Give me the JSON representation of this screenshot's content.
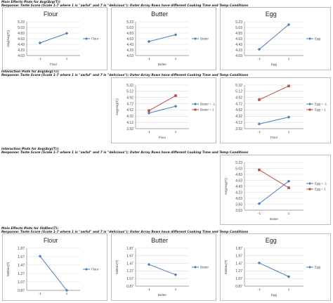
{
  "headers": [
    {
      "title": "Main Effects Plots for Avg(Avg(T))",
      "subtitle": "Response: Taste Score (Scale 1-7 where 1 is \"awful\" and 7 is \"delicious\"); Outer Array Rows have different Cooking Time and Temp Conditions"
    },
    {
      "title": "Interaction Plots for Avg(Avg(T)):",
      "subtitle": "Response: Taste Score (Scale 1-7 where 1 is \"awful\" and 7 is \"delicious\"); Outer Array Rows have different Cooking Time and Temp Conditions"
    },
    {
      "title": "Interaction Plots for Avg(Avg(T)):",
      "subtitle": "Response: Taste Score (Scale 1-7 where 1 is \"awful\" and 7 is \"delicious\"); Outer Array Rows have different Cooking Time and Temp Conditions"
    },
    {
      "title": "Main Effects Plots for StdDev(T):",
      "subtitle": "Response: Taste Score (Scale 1-7 where 1 is \"awful\" and 7 is \"delicious\"); Outer Array Rows have different Cooking Time and Temp Conditions"
    }
  ],
  "colors": {
    "blue": "#4a7ebb",
    "red": "#be4b48",
    "grid": "#d9d9d9",
    "axis": "#888888"
  },
  "chart_data": [
    {
      "type": "line",
      "title": "Flour",
      "xlabel": "Flour",
      "ylabel": "Avg(Avg(T))",
      "categories": [
        "-1",
        "1"
      ],
      "yticks": [
        "4.03",
        "4.23",
        "4.43",
        "4.63",
        "4.83",
        "5.03",
        "5.23"
      ],
      "ylim": [
        4.03,
        5.23
      ],
      "series": [
        {
          "name": "Flour",
          "color": "blue",
          "marker": "diamond",
          "values": [
            4.48,
            4.82
          ]
        }
      ]
    },
    {
      "type": "line",
      "title": "Butter",
      "xlabel": "Butter",
      "ylabel": "",
      "categories": [
        "-1",
        "1"
      ],
      "yticks": [
        "4.03",
        "4.23",
        "4.43",
        "4.63",
        "4.83",
        "5.03",
        "5.23"
      ],
      "ylim": [
        4.03,
        5.23
      ],
      "series": [
        {
          "name": "Butter",
          "color": "blue",
          "marker": "diamond",
          "values": [
            4.53,
            4.77
          ]
        }
      ]
    },
    {
      "type": "line",
      "title": "Egg",
      "xlabel": "Egg",
      "ylabel": "",
      "categories": [
        "-1",
        "1"
      ],
      "yticks": [
        "4.03",
        "4.23",
        "4.43",
        "4.63",
        "4.83",
        "5.03",
        "5.23"
      ],
      "ylim": [
        4.03,
        5.23
      ],
      "series": [
        {
          "name": "Egg",
          "color": "blue",
          "marker": "diamond",
          "values": [
            4.25,
            5.13
          ]
        }
      ]
    },
    {
      "type": "line",
      "title": "",
      "xlabel": "Flour",
      "ylabel": "Avg(Avg(T))",
      "categories": [
        "-1",
        "1"
      ],
      "yticks": [
        "3.92",
        "4.12",
        "4.32",
        "4.52",
        "4.72",
        "4.92",
        "5.12",
        "5.32"
      ],
      "ylim": [
        3.92,
        5.32
      ],
      "series": [
        {
          "name": "Butter = -1",
          "color": "blue",
          "marker": "diamond",
          "values": [
            4.42,
            4.64
          ]
        },
        {
          "name": "Butter = 1",
          "color": "red",
          "marker": "square",
          "values": [
            4.5,
            4.98
          ]
        }
      ]
    },
    {
      "type": "line",
      "title": "",
      "xlabel": "Flour",
      "ylabel": "",
      "categories": [
        "-1",
        "1"
      ],
      "yticks": [
        "3.92",
        "4.12",
        "4.32",
        "4.52",
        "4.72",
        "4.92",
        "5.12",
        "5.32"
      ],
      "ylim": [
        3.92,
        5.32
      ],
      "series": [
        {
          "name": "Egg = -1",
          "color": "blue",
          "marker": "diamond",
          "values": [
            4.07,
            4.29
          ]
        },
        {
          "name": "Egg = 1",
          "color": "red",
          "marker": "square",
          "values": [
            4.85,
            5.29
          ]
        }
      ]
    },
    {
      "type": "line",
      "title": "",
      "xlabel": "Butter",
      "ylabel": "Avg(Avg(T))",
      "categories": [
        "-1",
        "1"
      ],
      "yticks": [
        "3.63",
        "3.83",
        "4.03",
        "4.23",
        "4.43",
        "4.63",
        "4.83",
        "5.03",
        "5.23"
      ],
      "ylim": [
        3.63,
        5.23
      ],
      "series": [
        {
          "name": "Egg = -1",
          "color": "blue",
          "marker": "diamond",
          "values": [
            3.85,
            4.6
          ]
        },
        {
          "name": "Egg = 1",
          "color": "red",
          "marker": "square",
          "values": [
            4.98,
            4.38
          ]
        }
      ]
    },
    {
      "type": "line",
      "title": "Flour",
      "xlabel": "",
      "ylabel": "StdDev(T)",
      "categories": [
        "-1",
        "1"
      ],
      "yticks": [
        "0.87",
        "1.07",
        "1.27",
        "1.47",
        "1.67",
        "1.87"
      ],
      "ylim": [
        0.87,
        1.87
      ],
      "series": [
        {
          "name": "Flour",
          "color": "blue",
          "marker": "diamond",
          "values": [
            1.68,
            0.87
          ]
        }
      ]
    },
    {
      "type": "line",
      "title": "Butter",
      "xlabel": "Butter",
      "ylabel": "StdDev(T)",
      "categories": [
        "-1",
        "1"
      ],
      "yticks": [
        "0.87",
        "1.07",
        "1.27",
        "1.47",
        "1.67",
        "1.87"
      ],
      "ylim": [
        0.87,
        1.87
      ],
      "series": [
        {
          "name": "Butter",
          "color": "blue",
          "marker": "diamond",
          "values": [
            1.44,
            1.17
          ]
        }
      ]
    },
    {
      "type": "line",
      "title": "Egg",
      "xlabel": "Egg",
      "ylabel": "StdDev(T)",
      "categories": [
        "-1",
        "1"
      ],
      "yticks": [
        "0.87",
        "1.07",
        "1.27",
        "1.47",
        "1.67",
        "1.87"
      ],
      "ylim": [
        0.87,
        1.87
      ],
      "series": [
        {
          "name": "Egg",
          "color": "blue",
          "marker": "diamond",
          "values": [
            1.48,
            1.12
          ]
        }
      ]
    }
  ]
}
